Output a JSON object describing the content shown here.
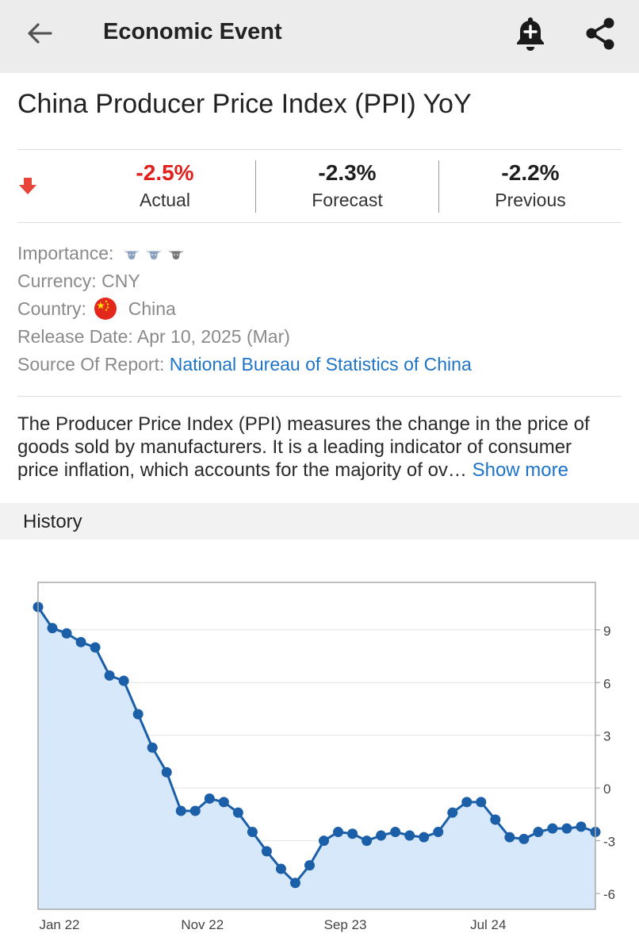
{
  "header": {
    "title": "Economic Event",
    "back_icon": "arrow-left-icon",
    "alert_icon": "bell-plus-icon",
    "share_icon": "share-icon"
  },
  "event": {
    "title": "China Producer Price Index (PPI) YoY",
    "trend_icon": "arrow-down-icon",
    "actual": {
      "value": "-2.5%",
      "label": "Actual",
      "color": "#e0201b"
    },
    "forecast": {
      "value": "-2.3%",
      "label": "Forecast"
    },
    "previous": {
      "value": "-2.2%",
      "label": "Previous"
    }
  },
  "info": {
    "importance_label": "Importance:",
    "importance_level": 2,
    "importance_max": 3,
    "currency_label": "Currency:",
    "currency_value": "CNY",
    "country_label": "Country:",
    "country_value": "China",
    "release_label": "Release Date:",
    "release_value": "Apr 10, 2025 (Mar)",
    "source_label": "Source Of Report:",
    "source_value": "National Bureau of Statistics of China"
  },
  "description": {
    "line1": "The Producer Price Index (PPI) measures the change in the price of",
    "line2": "goods sold by manufacturers. It is a leading indicator of consumer",
    "line3": "price inflation, which accounts for the majority of ov…",
    "show_more": "Show more"
  },
  "history": {
    "label": "History"
  },
  "colors": {
    "accent_blue": "#1c73c8",
    "series": "#1a5fa8",
    "area_fill": "#d6e7fb",
    "negative": "#e0201b"
  },
  "chart_data": {
    "type": "area",
    "x_tick_labels": [
      "Jan 22",
      "Nov 22",
      "Sep 23",
      "Jul 24"
    ],
    "x_tick_index": [
      0,
      10,
      20,
      30
    ],
    "y_ticks": [
      9,
      6,
      3,
      0,
      -3,
      -6
    ],
    "ylim": [
      -6.9,
      11.7
    ],
    "y_axis_position": "right",
    "grid": true,
    "series": [
      {
        "values": [
          10.3,
          9.1,
          8.8,
          8.3,
          8.0,
          6.4,
          6.1,
          4.2,
          2.3,
          0.9,
          -1.3,
          -1.3,
          -0.6,
          -0.8,
          -1.4,
          -2.5,
          -3.6,
          -4.6,
          -5.4,
          -4.4,
          -3.0,
          -2.5,
          -2.6,
          -3.0,
          -2.7,
          -2.5,
          -2.7,
          -2.8,
          -2.5,
          -1.4,
          -0.8,
          -0.8,
          -1.8,
          -2.8,
          -2.9,
          -2.5,
          -2.3,
          -2.3,
          -2.2,
          -2.5
        ]
      }
    ]
  }
}
